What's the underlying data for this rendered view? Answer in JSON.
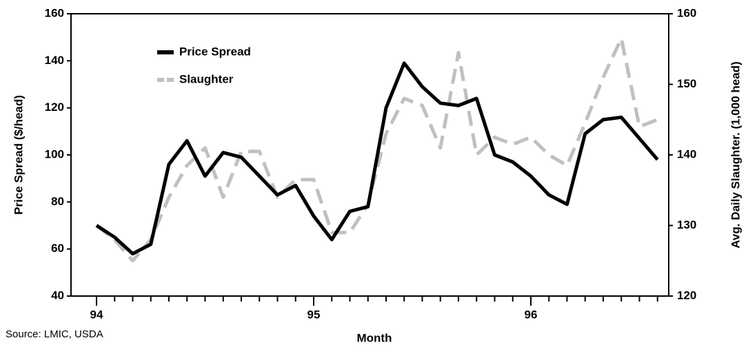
{
  "chart_data": {
    "type": "line",
    "source": "Source: LMIC, USDA",
    "x_label": "Month",
    "y_label": "Price Spread ($/head)",
    "y2_label": "Avg. Daily Slaughter. (1,000 head)",
    "categories": [
      "94",
      null,
      null,
      null,
      null,
      null,
      null,
      null,
      null,
      null,
      null,
      null,
      "95",
      null,
      null,
      null,
      null,
      null,
      null,
      null,
      null,
      null,
      null,
      null,
      "96",
      null,
      null,
      null,
      null,
      null,
      null,
      null
    ],
    "series": [
      {
        "name": "Price Spread",
        "color": "#000000",
        "values": [
          70,
          65,
          58,
          62,
          96,
          106,
          91,
          101,
          99,
          91,
          83,
          87,
          74,
          64,
          76,
          78,
          120,
          139,
          129,
          122,
          121,
          124,
          100,
          97,
          91,
          83,
          79,
          109,
          115,
          116,
          107,
          98
        ]
      },
      {
        "name": "Slaughter",
        "color": "#c0c0c0",
        "axis": "y2",
        "dashed": true,
        "values": [
          130,
          128,
          125,
          128,
          134,
          138.5,
          141,
          134,
          140.5,
          140.5,
          134,
          136.5,
          136.5,
          129,
          129,
          133,
          143,
          148,
          147,
          141,
          154.5,
          140,
          142.5,
          141.5,
          142.5,
          140,
          138.5,
          144.5,
          151,
          156.5,
          144,
          145
        ]
      }
    ],
    "ylim": [
      40,
      160
    ],
    "yticks": [
      40,
      60,
      80,
      100,
      120,
      140,
      160
    ],
    "y2lim": [
      120,
      160
    ],
    "y2ticks": [
      120,
      130,
      140,
      150,
      160
    ],
    "legend": "upper left",
    "grid": false
  }
}
